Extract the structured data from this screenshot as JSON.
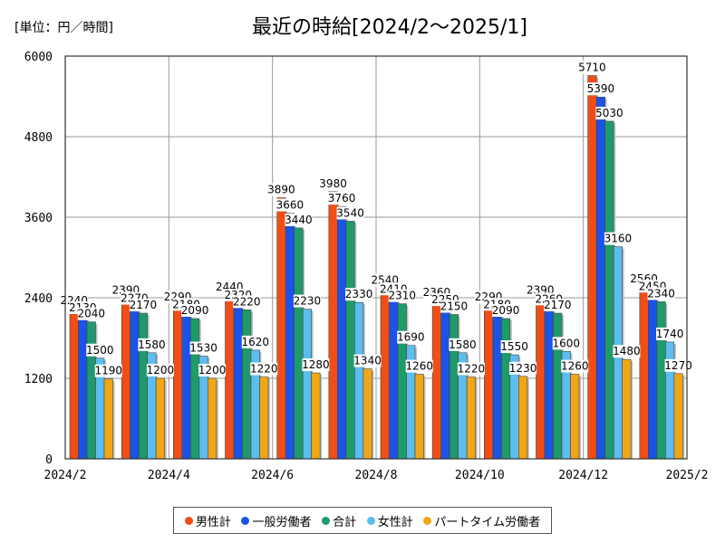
{
  "unit_label": "[単位：円／時間]",
  "chart_data": {
    "type": "bar",
    "title": "最近の時給[2024/2～2025/1]",
    "ylim": [
      0,
      6000
    ],
    "yticks": [
      "0",
      "1200",
      "2400",
      "3600",
      "4800",
      "6000"
    ],
    "categories": [
      "2024/2",
      "2024/3",
      "2024/4",
      "2024/5",
      "2024/6",
      "2024/7",
      "2024/8",
      "2024/9",
      "2024/10",
      "2024/11",
      "2024/12",
      "2025/1"
    ],
    "xtick_labels": [
      "2024/2",
      "2024/4",
      "2024/6",
      "2024/8",
      "2024/10",
      "2024/12",
      "2025/2"
    ],
    "series": [
      {
        "name": "男性計",
        "color": "#f04e16",
        "values": [
          2240,
          2390,
          2290,
          2440,
          3890,
          3980,
          2540,
          2360,
          2290,
          2390,
          5710,
          2560
        ],
        "labels": [
          "2240",
          "2390",
          "2290",
          "2440",
          "3890",
          "3980",
          "2540",
          "2360",
          "2290",
          "2390",
          "5710",
          "2560"
        ]
      },
      {
        "name": "一般労働者",
        "color": "#1a53e6",
        "values": [
          2130,
          2270,
          2180,
          2320,
          3660,
          3760,
          2410,
          2250,
          2180,
          2260,
          5390,
          2450
        ],
        "labels": [
          "2130",
          "2270",
          "2180",
          "2320",
          "3660",
          "3760",
          "2410",
          "2250",
          "2180",
          "2260",
          "5390",
          "2450"
        ]
      },
      {
        "name": "合計",
        "color": "#1e9a6b",
        "values": [
          2040,
          2170,
          2090,
          2220,
          3440,
          3540,
          2310,
          2150,
          2090,
          2170,
          5030,
          2340
        ],
        "labels": [
          "2040",
          "2170",
          "2090",
          "2220",
          "3440",
          "3540",
          "2310",
          "2150",
          "2090",
          "2170",
          "5030",
          "2340"
        ]
      },
      {
        "name": "女性計",
        "color": "#5bbdf0",
        "values": [
          1500,
          1580,
          1530,
          1620,
          2230,
          2330,
          1690,
          1580,
          1550,
          1600,
          3160,
          1740
        ],
        "labels": [
          "1500",
          "1580",
          "1530",
          "1620",
          "2230",
          "2330",
          "1690",
          "1580",
          "1550",
          "1600",
          "3160",
          "1740"
        ]
      },
      {
        "name": "パートタイム労働者",
        "color": "#f0a616",
        "values": [
          1190,
          1200,
          1200,
          1220,
          1280,
          1340,
          1260,
          1220,
          1230,
          1260,
          1480,
          1270
        ],
        "labels": [
          "1190",
          "1200",
          "1200",
          "1220",
          "1280",
          "1340",
          "1260",
          "1220",
          "1230",
          "1260",
          "1480",
          "1270"
        ]
      }
    ]
  }
}
